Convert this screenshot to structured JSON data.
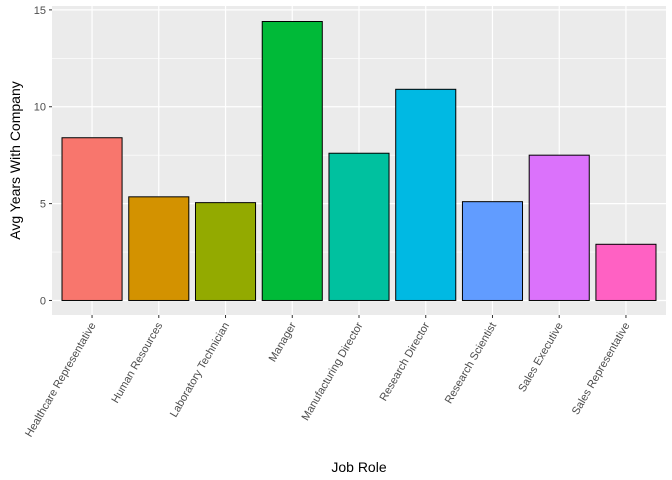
{
  "chart_data": {
    "type": "bar",
    "xlabel": "Job Role",
    "ylabel": "Avg Years With Company",
    "ylim": [
      -0.75,
      15.2
    ],
    "yticks": [
      0,
      5,
      10,
      15
    ],
    "grid": true,
    "categories": [
      "Healthcare Representative",
      "Human Resources",
      "Laboratory Technician",
      "Manager",
      "Manufacturing Director",
      "Research Director",
      "Research Scientist",
      "Sales Executive",
      "Sales Representative"
    ],
    "values": [
      8.4,
      5.35,
      5.05,
      14.4,
      7.6,
      10.9,
      5.1,
      7.5,
      2.9
    ],
    "colors": [
      "#F8766D",
      "#D39200",
      "#93AA00",
      "#00BA38",
      "#00C19F",
      "#00B9E3",
      "#619CFF",
      "#DB72FB",
      "#FF61C3"
    ],
    "panel_color": "#EBEBEB",
    "grid_color": "#FFFFFF",
    "bar_outline": "#000000"
  }
}
